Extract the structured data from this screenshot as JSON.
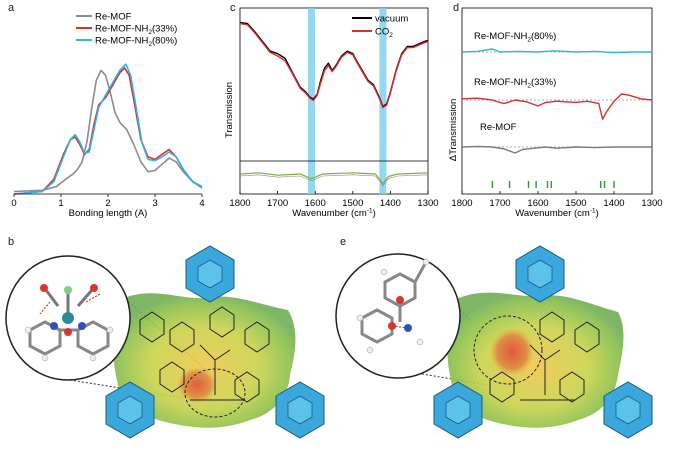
{
  "panels": {
    "a": {
      "letter": "a"
    },
    "b": {
      "letter": "b"
    },
    "c": {
      "letter": "c"
    },
    "d": {
      "letter": "d"
    },
    "e": {
      "letter": "e"
    }
  },
  "colors": {
    "re_mof": "#8c8c8c",
    "nh2_33": "#d9302e",
    "nh2_80": "#2fb4e0",
    "vacuum": "#000000",
    "co2": "#d9302e",
    "highlight": "#7fd1ef",
    "diff_line": "#7fae3c",
    "stick": "#2e9a3d"
  },
  "chart_data": [
    {
      "type": "line",
      "panel": "a",
      "xlabel": "Bonding length (A)",
      "ylabel": "",
      "xlim": [
        0,
        4
      ],
      "ylim": [
        0,
        1.1
      ],
      "xticks": [
        0,
        1,
        2,
        3,
        4
      ],
      "legend": "top-left",
      "series": [
        {
          "name": "Re-MOF",
          "color": "#8c8c8c",
          "points": [
            [
              0,
              0.02
            ],
            [
              0.6,
              0.03
            ],
            [
              0.9,
              0.06
            ],
            [
              1.1,
              0.12
            ],
            [
              1.25,
              0.16
            ],
            [
              1.35,
              0.2
            ],
            [
              1.45,
              0.26
            ],
            [
              1.55,
              0.42
            ],
            [
              1.65,
              0.68
            ],
            [
              1.75,
              0.92
            ],
            [
              1.85,
              1.0
            ],
            [
              1.95,
              0.96
            ],
            [
              2.05,
              0.82
            ],
            [
              2.15,
              0.66
            ],
            [
              2.25,
              0.58
            ],
            [
              2.4,
              0.52
            ],
            [
              2.55,
              0.4
            ],
            [
              2.7,
              0.26
            ],
            [
              2.85,
              0.18
            ],
            [
              3.0,
              0.19
            ],
            [
              3.15,
              0.24
            ],
            [
              3.3,
              0.29
            ],
            [
              3.45,
              0.26
            ],
            [
              3.6,
              0.18
            ],
            [
              3.8,
              0.1
            ],
            [
              4.0,
              0.06
            ]
          ]
        },
        {
          "name": "Re-MOF-NH2(33%)",
          "color": "#d9302e",
          "points": [
            [
              0,
              0.0
            ],
            [
              0.6,
              0.02
            ],
            [
              0.85,
              0.12
            ],
            [
              1.05,
              0.32
            ],
            [
              1.2,
              0.44
            ],
            [
              1.3,
              0.46
            ],
            [
              1.4,
              0.4
            ],
            [
              1.5,
              0.32
            ],
            [
              1.6,
              0.36
            ],
            [
              1.7,
              0.56
            ],
            [
              1.8,
              0.72
            ],
            [
              1.95,
              0.78
            ],
            [
              2.1,
              0.88
            ],
            [
              2.25,
              0.98
            ],
            [
              2.35,
              1.02
            ],
            [
              2.45,
              0.96
            ],
            [
              2.55,
              0.76
            ],
            [
              2.7,
              0.44
            ],
            [
              2.85,
              0.3
            ],
            [
              3.0,
              0.28
            ],
            [
              3.15,
              0.32
            ],
            [
              3.3,
              0.36
            ],
            [
              3.45,
              0.3
            ],
            [
              3.6,
              0.2
            ],
            [
              3.8,
              0.1
            ],
            [
              4.0,
              0.05
            ]
          ]
        },
        {
          "name": "Re-MOF-NH2(80%)",
          "color": "#2fb4e0",
          "points": [
            [
              0,
              0.0
            ],
            [
              0.6,
              0.02
            ],
            [
              0.85,
              0.1
            ],
            [
              1.05,
              0.3
            ],
            [
              1.2,
              0.44
            ],
            [
              1.3,
              0.48
            ],
            [
              1.4,
              0.42
            ],
            [
              1.5,
              0.33
            ],
            [
              1.6,
              0.34
            ],
            [
              1.7,
              0.52
            ],
            [
              1.8,
              0.7
            ],
            [
              1.95,
              0.8
            ],
            [
              2.1,
              0.9
            ],
            [
              2.25,
              1.0
            ],
            [
              2.38,
              1.05
            ],
            [
              2.48,
              0.96
            ],
            [
              2.58,
              0.74
            ],
            [
              2.72,
              0.42
            ],
            [
              2.85,
              0.28
            ],
            [
              3.0,
              0.27
            ],
            [
              3.15,
              0.3
            ],
            [
              3.3,
              0.34
            ],
            [
              3.45,
              0.3
            ],
            [
              3.6,
              0.2
            ],
            [
              3.8,
              0.1
            ],
            [
              4.0,
              0.05
            ]
          ]
        }
      ]
    },
    {
      "type": "line",
      "panel": "c",
      "xlabel": "Wavenumber (cm⁻¹)",
      "ylabel": "Transmission",
      "xlim": [
        1800,
        1300
      ],
      "xticks": [
        1800,
        1700,
        1600,
        1500,
        1400,
        1300
      ],
      "highlight_bands": [
        1610,
        1420
      ],
      "legend": "top-right",
      "series": [
        {
          "name": "vacuum",
          "color": "#000000",
          "points": [
            [
              1800,
              0.98
            ],
            [
              1780,
              0.97
            ],
            [
              1760,
              0.9
            ],
            [
              1740,
              0.82
            ],
            [
              1720,
              0.74
            ],
            [
              1700,
              0.72
            ],
            [
              1680,
              0.68
            ],
            [
              1660,
              0.56
            ],
            [
              1640,
              0.44
            ],
            [
              1625,
              0.4
            ],
            [
              1615,
              0.36
            ],
            [
              1605,
              0.34
            ],
            [
              1595,
              0.38
            ],
            [
              1585,
              0.5
            ],
            [
              1575,
              0.6
            ],
            [
              1565,
              0.64
            ],
            [
              1555,
              0.58
            ],
            [
              1545,
              0.62
            ],
            [
              1530,
              0.7
            ],
            [
              1515,
              0.74
            ],
            [
              1500,
              0.72
            ],
            [
              1490,
              0.66
            ],
            [
              1475,
              0.58
            ],
            [
              1460,
              0.5
            ],
            [
              1445,
              0.46
            ],
            [
              1430,
              0.36
            ],
            [
              1420,
              0.28
            ],
            [
              1410,
              0.3
            ],
            [
              1400,
              0.4
            ],
            [
              1385,
              0.58
            ],
            [
              1370,
              0.72
            ],
            [
              1355,
              0.78
            ],
            [
              1340,
              0.78
            ],
            [
              1325,
              0.8
            ],
            [
              1310,
              0.82
            ],
            [
              1300,
              0.83
            ]
          ]
        },
        {
          "name": "CO2",
          "color": "#d9302e",
          "points": [
            [
              1800,
              0.97
            ],
            [
              1780,
              0.96
            ],
            [
              1760,
              0.89
            ],
            [
              1740,
              0.81
            ],
            [
              1720,
              0.73
            ],
            [
              1700,
              0.7
            ],
            [
              1680,
              0.66
            ],
            [
              1660,
              0.55
            ],
            [
              1640,
              0.43
            ],
            [
              1625,
              0.39
            ],
            [
              1615,
              0.35
            ],
            [
              1605,
              0.33
            ],
            [
              1595,
              0.37
            ],
            [
              1585,
              0.48
            ],
            [
              1575,
              0.58
            ],
            [
              1565,
              0.62
            ],
            [
              1555,
              0.57
            ],
            [
              1545,
              0.61
            ],
            [
              1530,
              0.69
            ],
            [
              1515,
              0.73
            ],
            [
              1500,
              0.71
            ],
            [
              1490,
              0.65
            ],
            [
              1475,
              0.57
            ],
            [
              1460,
              0.49
            ],
            [
              1445,
              0.45
            ],
            [
              1430,
              0.35
            ],
            [
              1420,
              0.27
            ],
            [
              1410,
              0.29
            ],
            [
              1400,
              0.39
            ],
            [
              1385,
              0.57
            ],
            [
              1370,
              0.71
            ],
            [
              1355,
              0.77
            ],
            [
              1340,
              0.77
            ],
            [
              1325,
              0.79
            ],
            [
              1310,
              0.81
            ],
            [
              1300,
              0.82
            ]
          ]
        }
      ],
      "difference_trace": {
        "color": "#7fae3c",
        "points": [
          [
            1800,
            0.0
          ],
          [
            1750,
            0.01
          ],
          [
            1700,
            -0.01
          ],
          [
            1640,
            0.0
          ],
          [
            1610,
            -0.04
          ],
          [
            1580,
            0.0
          ],
          [
            1500,
            0.01
          ],
          [
            1440,
            0.0
          ],
          [
            1420,
            -0.08
          ],
          [
            1405,
            -0.02
          ],
          [
            1380,
            0.0
          ],
          [
            1300,
            0.01
          ]
        ]
      }
    },
    {
      "type": "line",
      "panel": "d",
      "xlabel": "Wavenumber (cm⁻¹)",
      "ylabel": "ΔTransmission",
      "xlim": [
        1800,
        1300
      ],
      "xticks": [
        1800,
        1700,
        1600,
        1500,
        1400,
        1300
      ],
      "stick_positions": [
        1720,
        1675,
        1625,
        1605,
        1575,
        1565,
        1435,
        1425,
        1400
      ],
      "series": [
        {
          "name": "Re-MOF-NH2(80%)",
          "color": "#2fb4e0",
          "points": [
            [
              1800,
              0.0
            ],
            [
              1760,
              0.01
            ],
            [
              1720,
              0.05
            ],
            [
              1700,
              0.0
            ],
            [
              1650,
              0.01
            ],
            [
              1600,
              0.0
            ],
            [
              1560,
              0.02
            ],
            [
              1500,
              0.0
            ],
            [
              1450,
              0.01
            ],
            [
              1400,
              -0.01
            ],
            [
              1350,
              0.0
            ],
            [
              1300,
              0.0
            ]
          ]
        },
        {
          "name": "Re-MOF-NH2(33%)",
          "color": "#d9302e",
          "points": [
            [
              1800,
              0.02
            ],
            [
              1760,
              0.03
            ],
            [
              1720,
              0.0
            ],
            [
              1690,
              -0.06
            ],
            [
              1660,
              0.0
            ],
            [
              1630,
              -0.03
            ],
            [
              1600,
              -0.1
            ],
            [
              1580,
              -0.04
            ],
            [
              1550,
              -0.02
            ],
            [
              1500,
              -0.04
            ],
            [
              1470,
              -0.02
            ],
            [
              1440,
              -0.06
            ],
            [
              1430,
              -0.32
            ],
            [
              1420,
              -0.2
            ],
            [
              1400,
              -0.02
            ],
            [
              1380,
              0.1
            ],
            [
              1360,
              0.08
            ],
            [
              1330,
              0.02
            ],
            [
              1300,
              0.0
            ]
          ]
        },
        {
          "name": "Re-MOF",
          "color": "#7a7a7a",
          "points": [
            [
              1800,
              0.0
            ],
            [
              1760,
              0.01
            ],
            [
              1720,
              0.0
            ],
            [
              1690,
              -0.03
            ],
            [
              1660,
              -0.1
            ],
            [
              1640,
              -0.04
            ],
            [
              1610,
              -0.02
            ],
            [
              1580,
              0.0
            ],
            [
              1550,
              -0.02
            ],
            [
              1500,
              0.0
            ],
            [
              1450,
              -0.01
            ],
            [
              1400,
              0.0
            ],
            [
              1350,
              0.0
            ],
            [
              1300,
              0.0
            ]
          ]
        }
      ]
    }
  ],
  "axis_text": {
    "a": {
      "xlabel": "Bonding length (A)",
      "ticks": [
        "0",
        "1",
        "2",
        "3",
        "4"
      ]
    },
    "c": {
      "xlabel": "Wavenumber (cm",
      "xlabel_exp": "-1",
      "xlabel_end": ")",
      "ylabel": "Transmission",
      "ticks": [
        "1800",
        "1700",
        "1600",
        "1500",
        "1400",
        "1300"
      ]
    },
    "d": {
      "xlabel": "Wavenumber (cm",
      "xlabel_exp": "-1",
      "xlabel_end": ")",
      "ylabel": "ΔTransmission",
      "ticks": [
        "1800",
        "1700",
        "1600",
        "1500",
        "1400",
        "1300"
      ]
    }
  },
  "legend": {
    "a": {
      "re_mof": "Re-MOF",
      "nh2_33_base": "Re-MOF-NH",
      "nh2_33_sub": "2",
      "nh2_33_tail": "(33%)",
      "nh2_80_base": "Re-MOF-NH",
      "nh2_80_sub": "2",
      "nh2_80_tail": "(80%)"
    },
    "c": {
      "vacuum": "vacuum",
      "co2_base": "CO",
      "co2_sub": "2"
    }
  },
  "d_labels": {
    "nh2_80_base": "Re-MOF-NH",
    "nh2_80_sub": "2",
    "nh2_80_tail": "(80%)",
    "nh2_33_base": "Re-MOF-NH",
    "nh2_33_sub": "2",
    "nh2_33_tail": "(33%)",
    "re_mof": "Re-MOF"
  }
}
